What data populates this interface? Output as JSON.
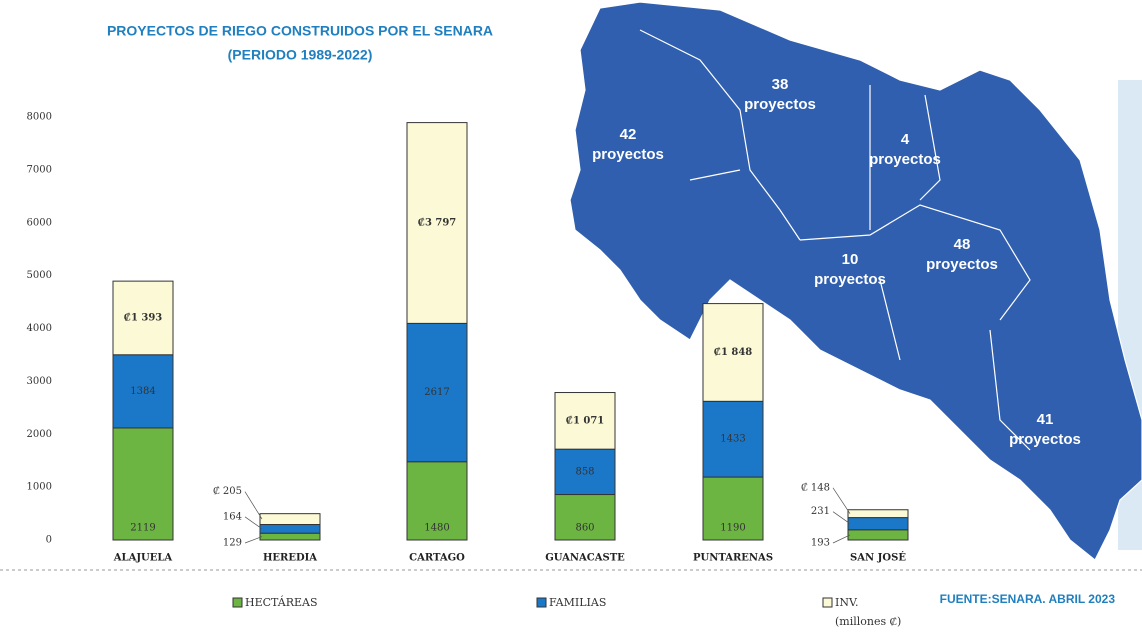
{
  "chart_data": {
    "type": "stacked_bar",
    "title": "PROYECTOS DE RIEGO CONSTRUIDOS POR EL SENARA",
    "subtitle": "(PERIODO 1989-2022)",
    "categories": [
      "ALAJUELA",
      "HEREDIA",
      "CARTAGO",
      "GUANACASTE",
      "PUNTARENAS",
      "SAN JOSÉ"
    ],
    "series": [
      {
        "name": "HECTÁREAS",
        "color": "#6db543",
        "values": [
          2119,
          129,
          1480,
          860,
          1190,
          193
        ]
      },
      {
        "name": "FAMILIAS",
        "color": "#1b78c8",
        "values": [
          1384,
          164,
          2617,
          858,
          1433,
          231
        ]
      },
      {
        "name": "INV.",
        "color": "#fcfad6",
        "values": [
          1393,
          205,
          3797,
          1071,
          1848,
          148
        ],
        "value_labels": [
          "₡1 393",
          "₡ 205",
          "₡3 797",
          "₡1 071",
          "₡1 848",
          "₡ 148"
        ]
      }
    ],
    "legend_note": "(millones ₡)",
    "ylim": [
      0,
      8000
    ],
    "yticks": [
      0,
      1000,
      2000,
      3000,
      4000,
      5000,
      6000,
      7000,
      8000
    ],
    "grid": false,
    "source": "FUENTE:SENARA. ABRIL 2023",
    "map_labels": [
      {
        "number": "42",
        "text": "proyectos"
      },
      {
        "number": "38",
        "text": "proyectos"
      },
      {
        "number": "4",
        "text": "proyectos"
      },
      {
        "number": "10",
        "text": "proyectos"
      },
      {
        "number": "48",
        "text": "proyectos"
      },
      {
        "number": "41",
        "text": "proyectos"
      }
    ]
  }
}
